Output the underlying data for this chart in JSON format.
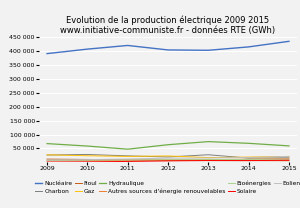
{
  "title_line1": "Evolution de la production électrique 2009 2015",
  "title_line2": "www.initiative-communiste.fr - données RTE (GWh)",
  "years": [
    2009,
    2010,
    2011,
    2012,
    2013,
    2014,
    2015
  ],
  "series": [
    {
      "name": "Nucléaire",
      "values": [
        391700,
        407900,
        421100,
        404900,
        403700,
        415900,
        436000
      ],
      "color": "#4472c4",
      "linewidth": 1.0,
      "zorder": 5
    },
    {
      "name": "Charbon",
      "values": [
        26000,
        28000,
        23000,
        19000,
        27000,
        15000,
        16000
      ],
      "color": "#7f7f7f",
      "linewidth": 0.7,
      "zorder": 3
    },
    {
      "name": "Fioul",
      "values": [
        11200,
        10100,
        8300,
        6400,
        5900,
        5900,
        5600
      ],
      "color": "#c55a11",
      "linewidth": 0.7,
      "zorder": 3
    },
    {
      "name": "Gaz",
      "values": [
        26800,
        23400,
        21100,
        22700,
        16700,
        18700,
        21000
      ],
      "color": "#ffc000",
      "linewidth": 0.7,
      "zorder": 3
    },
    {
      "name": "Hydraulique",
      "values": [
        67200,
        58400,
        47100,
        63200,
        74400,
        68200,
        59000
      ],
      "color": "#70ad47",
      "linewidth": 0.9,
      "zorder": 4
    },
    {
      "name": "Autres sources d'énergie renouvelables",
      "values": [
        5000,
        6000,
        7200,
        8500,
        9500,
        11000,
        12500
      ],
      "color": "#ed7d31",
      "linewidth": 0.7,
      "zorder": 3
    },
    {
      "name": "Bioénergies",
      "values": [
        7000,
        7500,
        8200,
        9000,
        9500,
        10200,
        10800
      ],
      "color": "#a9d18e",
      "linewidth": 0.7,
      "zorder": 3
    },
    {
      "name": "Solaire",
      "values": [
        500,
        1500,
        2900,
        4800,
        6200,
        5900,
        7400
      ],
      "color": "#ff0000",
      "linewidth": 0.7,
      "zorder": 3
    },
    {
      "name": "Eolien",
      "values": [
        7900,
        9500,
        11600,
        14900,
        15100,
        17300,
        21200
      ],
      "color": "#bfbfbf",
      "linewidth": 0.7,
      "zorder": 3
    }
  ],
  "ylim": [
    0,
    450000
  ],
  "ytick_values": [
    50000,
    100000,
    150000,
    200000,
    250000,
    300000,
    350000,
    400000,
    450000
  ],
  "xlim": [
    2009,
    2015
  ],
  "xticks": [
    2009,
    2010,
    2011,
    2012,
    2013,
    2014,
    2015
  ],
  "bg_color": "#f2f2f2",
  "plot_bg_color": "#f2f2f2",
  "grid_color": "#ffffff",
  "title_fontsize": 6.0,
  "legend_fontsize": 4.2,
  "tick_fontsize": 4.5
}
